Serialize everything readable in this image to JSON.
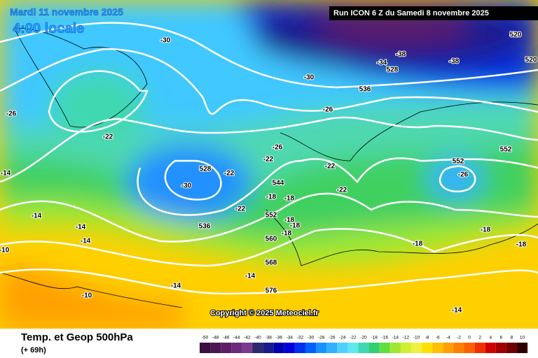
{
  "header": {
    "date": "Mardi 11 novembre 2025",
    "time": "4:00 locale",
    "run": "Run ICON 6 Z du Samedi 8 novembre 2025"
  },
  "footer": {
    "title": "Temp. et Geop 500hPa",
    "lead": "(+ 69h)",
    "copyright": "Copyright © 2025 Meteociel.fr"
  },
  "map_labels": [
    "-30",
    "-38",
    "-34",
    "528",
    "-38",
    "520",
    "520",
    "-30",
    "536",
    "-26",
    "-26",
    "-22",
    "-26",
    "-22",
    "552",
    "552",
    "-26",
    "528",
    "-22",
    "-22",
    "-30",
    "544",
    "-22",
    "-18",
    "-18",
    "-22",
    "-14",
    "-14",
    "552",
    "-18",
    "-18",
    "-18",
    "536",
    "-14",
    "-14",
    "560",
    "-18",
    "-18",
    "-18",
    "-10",
    "568",
    "-14",
    "-14",
    "576",
    "-10",
    "-14"
  ],
  "scale": {
    "labels": [
      -50,
      -48,
      -46,
      -44,
      -42,
      -40,
      -38,
      -36,
      -34,
      -32,
      -30,
      -28,
      -26,
      -24,
      -22,
      -20,
      -18,
      -16,
      -14,
      -12,
      -10,
      -8,
      -6,
      -4,
      -2,
      0,
      2,
      4,
      6,
      8,
      10
    ],
    "colors": [
      "#3a0f3d",
      "#4b1650",
      "#5c1e66",
      "#6b2a7a",
      "#7a3a8f",
      "#2a2a6e",
      "#1a1a8e",
      "#0000b0",
      "#0000d8",
      "#0030f0",
      "#0060ff",
      "#1890ff",
      "#30b0ff",
      "#50d0ff",
      "#60e8f0",
      "#40d8b0",
      "#30d070",
      "#60e040",
      "#a0e830",
      "#d0f030",
      "#f0f040",
      "#ffe000",
      "#ffc000",
      "#ffa000",
      "#ff8000",
      "#ff6000",
      "#f03000",
      "#d00000",
      "#a00000",
      "#700000",
      "#300000"
    ]
  }
}
